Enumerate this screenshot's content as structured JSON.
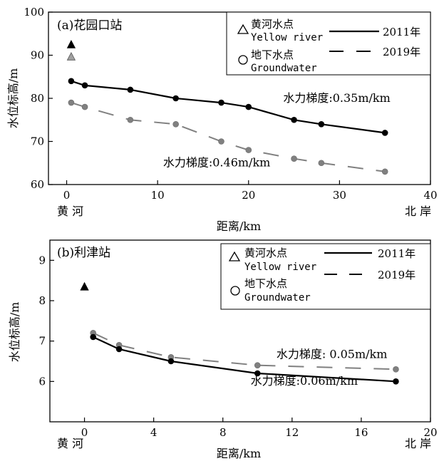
{
  "chart_data": [
    {
      "type": "line",
      "panel_label": "(a)花园口站",
      "xlabel": "距离/km",
      "ylabel": "水位标高/m",
      "xlim": [
        -2,
        40
      ],
      "ylim": [
        60,
        100
      ],
      "xticks": [
        0,
        10,
        20,
        30,
        40
      ],
      "yticks": [
        60,
        70,
        80,
        90,
        100
      ],
      "x_left_label": "黄 河",
      "x_right_label": "北 岸",
      "legend": {
        "placement": "top-right",
        "point_items": [
          {
            "marker": "triangle",
            "cn": "黄河水点",
            "en": "Yellow river"
          },
          {
            "marker": "circle",
            "cn": "地下水点",
            "en": "Groundwater"
          }
        ],
        "line_items": [
          {
            "style": "solid",
            "label": "2011年"
          },
          {
            "style": "dashed",
            "label": "2019年"
          }
        ]
      },
      "series": [
        {
          "name": "2011年",
          "style": "solid",
          "color": "#000000",
          "marker": "circle",
          "x": [
            0.5,
            2,
            7,
            12,
            17,
            20,
            25,
            28,
            35
          ],
          "y": [
            84,
            83,
            82,
            80,
            79,
            78,
            75,
            74,
            72
          ]
        },
        {
          "name": "2019年",
          "style": "dashed",
          "color": "#808080",
          "marker": "circle",
          "x": [
            0.5,
            2,
            7,
            12,
            17,
            20,
            25,
            28,
            35
          ],
          "y": [
            79,
            78,
            75,
            74,
            70,
            68,
            66,
            65,
            63
          ]
        }
      ],
      "river_points": [
        {
          "x": 0.5,
          "y": 92.5,
          "color": "#000000"
        },
        {
          "x": 0.5,
          "y": 89.7,
          "color": "#a0a0a0"
        }
      ],
      "annotations": [
        {
          "text": "水力梯度:0.35m/km",
          "x": 29.7,
          "y": 79.2
        },
        {
          "text": "水力梯度:0.46m/km",
          "x": 16.5,
          "y": 64.2
        }
      ]
    },
    {
      "type": "line",
      "panel_label": "(b)利津站",
      "xlabel": "距离/km",
      "ylabel": "水位标高/m",
      "xlim": [
        -2,
        20
      ],
      "ylim": [
        5,
        9.5
      ],
      "xticks": [
        0,
        4,
        8,
        12,
        16,
        20
      ],
      "yticks": [
        6,
        7,
        8,
        9
      ],
      "x_left_label": "黄 河",
      "x_right_label": "北 岸",
      "legend": {
        "placement": "top-right",
        "point_items": [
          {
            "marker": "triangle",
            "cn": "黄河水点",
            "en": "Yellow river"
          },
          {
            "marker": "circle",
            "cn": "地下水点",
            "en": "Groundwater"
          }
        ],
        "line_items": [
          {
            "style": "solid",
            "label": "2011年"
          },
          {
            "style": "dashed",
            "label": "2019年"
          }
        ]
      },
      "series": [
        {
          "name": "2011年",
          "style": "solid",
          "color": "#000000",
          "marker": "circle",
          "x": [
            0.5,
            2,
            5,
            10,
            18
          ],
          "y": [
            7.1,
            6.8,
            6.5,
            6.2,
            6.0
          ]
        },
        {
          "name": "2019年",
          "style": "dashed",
          "color": "#808080",
          "marker": "circle",
          "x": [
            0.5,
            2,
            5,
            10,
            18
          ],
          "y": [
            7.2,
            6.9,
            6.6,
            6.4,
            6.3
          ]
        }
      ],
      "river_points": [
        {
          "x": 0,
          "y": 8.35,
          "color": "#000000"
        }
      ],
      "annotations": [
        {
          "text": "水力梯度: 0.05m/km",
          "x": 14.3,
          "y": 6.58
        },
        {
          "text": "水力梯度:0.06m/km",
          "x": 12.7,
          "y": 5.92
        }
      ]
    }
  ]
}
